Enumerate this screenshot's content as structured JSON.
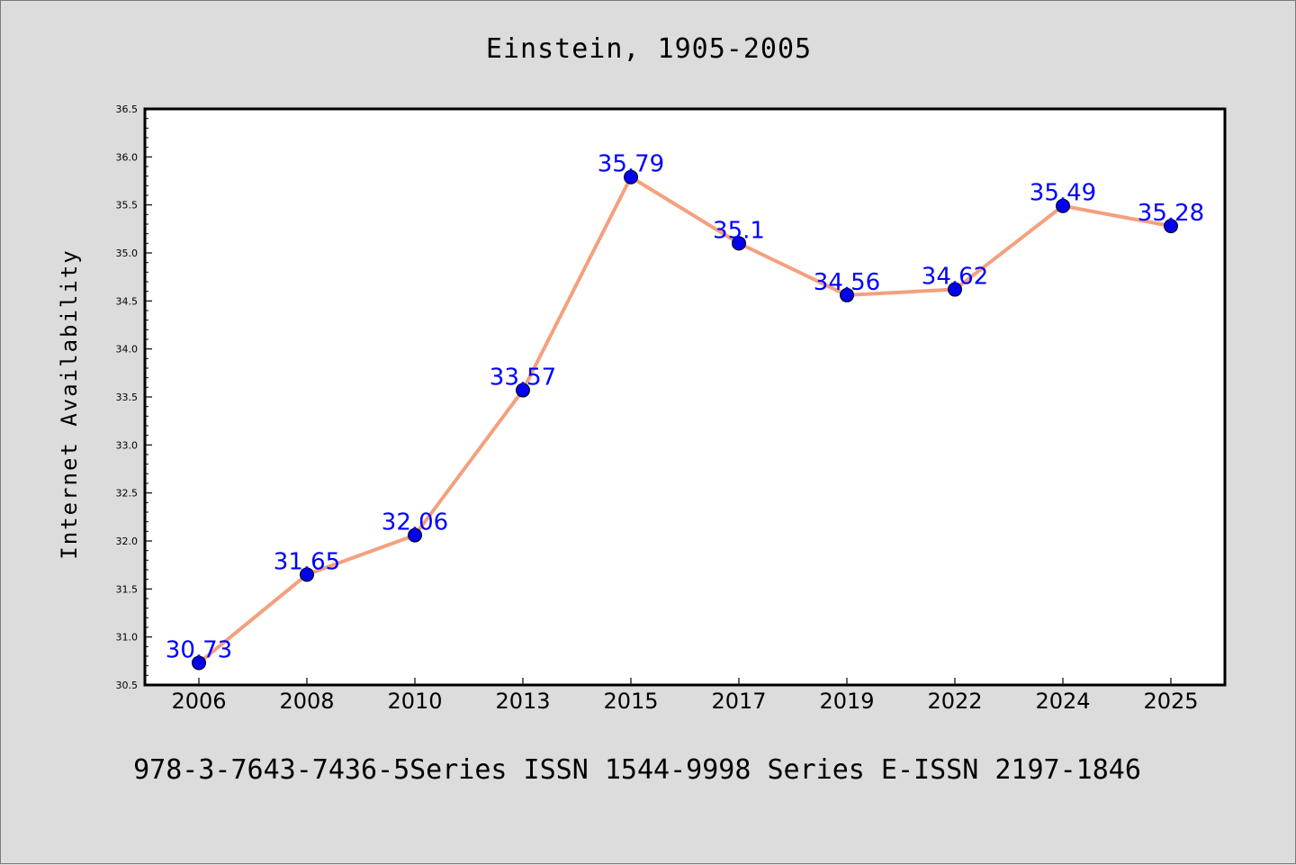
{
  "chart_data": {
    "type": "line",
    "title": "Einstein, 1905-2005",
    "footer": "978-3-7643-7436-5Series ISSN 1544-9998 Series E-ISSN 2197-1846",
    "xlabel": "",
    "ylabel": "Internet Availability",
    "categories": [
      "2006",
      "2008",
      "2010",
      "2013",
      "2015",
      "2017",
      "2019",
      "2022",
      "2024",
      "2025"
    ],
    "series": [
      {
        "values": [
          30.73,
          31.65,
          32.06,
          33.57,
          35.79,
          35.1,
          34.56,
          34.62,
          35.49,
          35.28
        ],
        "line_color": "#f4a07e",
        "marker_color": "#0000ee"
      }
    ],
    "data_labels": [
      "30.73",
      "31.65",
      "32.06",
      "33.57",
      "35.79",
      "35.1",
      "34.56",
      "34.62",
      "35.49",
      "35.28"
    ],
    "label_color": "#0000ff",
    "ylim": [
      30.5,
      36.5
    ],
    "yticks": [
      "30.5",
      "31.0",
      "31.5",
      "32.0",
      "32.5",
      "33.0",
      "33.5",
      "34.0",
      "34.5",
      "35.0",
      "35.5",
      "36.0",
      "36.5"
    ],
    "grid": false
  }
}
